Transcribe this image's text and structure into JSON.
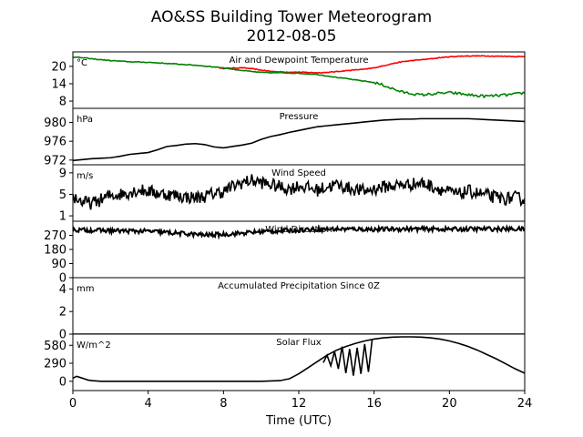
{
  "figure": {
    "title_line1": "AO&SS Building Tower Meteorogram",
    "title_line2": "2012-08-05",
    "xlabel": "Time (UTC)",
    "xticks": [
      0,
      4,
      8,
      12,
      16,
      20,
      24
    ],
    "xlim": [
      0,
      24
    ]
  },
  "chart_data": [
    {
      "type": "line",
      "title": "Air and Dewpoint Temperature",
      "unit": "°C",
      "ylim": [
        5.5,
        25
      ],
      "yticks": [
        8,
        14,
        20
      ],
      "series": [
        {
          "color": "#ff0000",
          "x": [
            7.8,
            8.5,
            9,
            9.5,
            10,
            10.5,
            11,
            11.5,
            12,
            12.5,
            13,
            13.5,
            14,
            14.5,
            15,
            15.5,
            16,
            16.5,
            17,
            17.5,
            18,
            18.5,
            19,
            19.5,
            20,
            20.5,
            21,
            21.5,
            22,
            22.5,
            23,
            23.5,
            24
          ],
          "y": [
            19.3,
            19.4,
            19.5,
            19.2,
            18.7,
            18.3,
            18.1,
            18.0,
            18.0,
            17.9,
            17.8,
            17.9,
            18.2,
            18.5,
            18.8,
            19.0,
            19.5,
            20.2,
            21.0,
            21.6,
            22.0,
            22.3,
            22.6,
            23.0,
            23.3,
            23.5,
            23.6,
            23.6,
            23.6,
            23.5,
            23.5,
            23.4,
            23.4
          ]
        },
        {
          "color": "#008000",
          "x": [
            0,
            0.5,
            1,
            1.5,
            2,
            2.5,
            3,
            3.5,
            4,
            4.5,
            5,
            5.5,
            6,
            6.5,
            7,
            7.5,
            8,
            8.5,
            9,
            9.5,
            10,
            10.5,
            11,
            11.5,
            12,
            12.5,
            13,
            13.5,
            14,
            14.5,
            15,
            15.5,
            16,
            16.5,
            17,
            17.5,
            18,
            18.5,
            19,
            19.5,
            20,
            20.5,
            21,
            21.5,
            22,
            22.5,
            23,
            23.5,
            24
          ],
          "y": [
            23.2,
            23.0,
            22.6,
            22.3,
            22.0,
            21.8,
            21.6,
            21.5,
            21.4,
            21.2,
            21.0,
            20.8,
            20.6,
            20.4,
            20.1,
            19.8,
            19.5,
            19.0,
            18.6,
            18.2,
            17.9,
            17.8,
            17.8,
            17.7,
            17.6,
            17.4,
            17.2,
            16.7,
            16.2,
            15.8,
            15.3,
            14.9,
            14.4,
            13.5,
            12.2,
            11.1,
            10.6,
            10.1,
            10.4,
            10.7,
            10.9,
            10.6,
            10.2,
            9.8,
            9.7,
            9.9,
            10.1,
            10.4,
            10.9
          ]
        }
      ]
    },
    {
      "type": "line",
      "title": "Pressure",
      "unit": "hPa",
      "ylim": [
        971.0,
        983.0
      ],
      "yticks": [
        972,
        976,
        980
      ],
      "series": [
        {
          "color": "#000000",
          "x": [
            0,
            0.5,
            1,
            1.5,
            2,
            2.5,
            3,
            3.5,
            4,
            4.5,
            5,
            5.5,
            6,
            6.5,
            7,
            7.5,
            8,
            8.5,
            9,
            9.5,
            10,
            10.5,
            11,
            11.5,
            12,
            12.5,
            13,
            13.5,
            14,
            14.5,
            15,
            15.5,
            16,
            16.5,
            17,
            17.5,
            18,
            18.5,
            19,
            19.5,
            20,
            20.5,
            21,
            21.5,
            22,
            22.5,
            23,
            23.5,
            24
          ],
          "y": [
            971.9,
            972.1,
            972.3,
            972.4,
            972.5,
            972.8,
            973.2,
            973.4,
            973.6,
            974.2,
            974.9,
            975.1,
            975.4,
            975.5,
            975.3,
            974.8,
            974.6,
            974.9,
            975.2,
            975.6,
            976.4,
            977.0,
            977.4,
            977.9,
            978.3,
            978.7,
            979.1,
            979.3,
            979.5,
            979.7,
            979.9,
            980.1,
            980.3,
            980.5,
            980.6,
            980.7,
            980.7,
            980.8,
            980.8,
            980.8,
            980.8,
            980.8,
            980.8,
            980.7,
            980.6,
            980.5,
            980.4,
            980.3,
            980.2
          ]
        }
      ]
    },
    {
      "type": "line",
      "title": "Wind Speed",
      "unit": "m/s",
      "ylim": [
        0,
        10.5
      ],
      "yticks": [
        1,
        5,
        9
      ],
      "series": [
        {
          "color": "#000000",
          "x": [
            0,
            0.5,
            1,
            1.5,
            2,
            2.5,
            3,
            3.5,
            4,
            4.5,
            5,
            5.5,
            6,
            6.5,
            7,
            7.5,
            8,
            8.5,
            9,
            9.5,
            10,
            10.5,
            11,
            11.5,
            12,
            12.5,
            13,
            13.5,
            14,
            14.5,
            15,
            15.5,
            16,
            16.5,
            17,
            17.5,
            18,
            18.5,
            19,
            19.5,
            20,
            20.5,
            21,
            21.5,
            22,
            22.5,
            23,
            23.5,
            24
          ],
          "y": [
            4.6,
            3.6,
            3.3,
            4.0,
            4.8,
            5.0,
            5.4,
            5.8,
            5.6,
            5.2,
            5.0,
            4.8,
            4.5,
            4.4,
            4.6,
            5.2,
            5.5,
            6.5,
            7.2,
            7.6,
            7.2,
            6.8,
            6.4,
            6.0,
            6.6,
            6.2,
            5.8,
            6.4,
            6.8,
            6.3,
            5.9,
            5.6,
            6.0,
            6.4,
            6.6,
            6.8,
            6.9,
            7.1,
            6.6,
            6.0,
            5.4,
            5.0,
            5.6,
            5.2,
            4.8,
            4.4,
            4.2,
            4.4,
            4.0
          ],
          "noise": 1.2
        }
      ]
    },
    {
      "type": "line",
      "title": "Wind Direction",
      "unit": "",
      "ylim": [
        0,
        360
      ],
      "yticks": [
        0,
        90,
        180,
        270
      ],
      "series": [
        {
          "color": "#000000",
          "x": [
            0,
            1,
            2,
            3,
            4,
            5,
            6,
            7,
            8,
            9,
            10,
            11,
            12,
            13,
            14,
            15,
            16,
            17,
            18,
            19,
            20,
            21,
            22,
            23,
            24
          ],
          "y": [
            305,
            303,
            300,
            298,
            296,
            288,
            280,
            272,
            276,
            284,
            294,
            298,
            304,
            308,
            310,
            310,
            308,
            310,
            311,
            310,
            309,
            310,
            311,
            310,
            310
          ],
          "noise": 14
        }
      ]
    },
    {
      "type": "line",
      "title": "Accumulated Precipitation Since 0Z",
      "unit": "mm",
      "ylim": [
        0,
        5
      ],
      "yticks": [
        0,
        2,
        4
      ],
      "series": [
        {
          "color": "#000000",
          "x": [
            0,
            24
          ],
          "y": [
            0,
            0
          ]
        }
      ]
    },
    {
      "type": "line",
      "title": "Solar Flux",
      "unit": "W/m^2",
      "ylim": [
        -150,
        760
      ],
      "yticks": [
        0,
        290,
        580
      ],
      "series": [
        {
          "color": "#000000",
          "x": [
            0,
            0.2,
            0.4,
            0.6,
            0.8,
            1,
            1.5,
            2,
            4,
            6,
            8,
            10,
            11,
            11.5,
            12,
            12.5,
            13,
            13.5,
            14,
            14.5,
            15,
            15.5,
            16,
            16.5,
            17,
            17.5,
            18,
            18.5,
            19,
            19.5,
            20,
            20.5,
            21,
            21.5,
            22,
            22.5,
            23,
            23.5,
            24
          ],
          "y": [
            50,
            80,
            60,
            40,
            20,
            10,
            0,
            0,
            0,
            0,
            0,
            0,
            10,
            40,
            120,
            220,
            320,
            420,
            500,
            560,
            610,
            650,
            680,
            700,
            712,
            716,
            716,
            712,
            700,
            680,
            650,
            610,
            560,
            500,
            430,
            360,
            280,
            200,
            130
          ]
        },
        {
          "color": "#000000",
          "x": [
            13.3,
            13.5,
            13.7,
            13.9,
            14.1,
            14.3,
            14.5,
            14.7,
            14.9,
            15.1,
            15.3,
            15.5,
            15.7,
            15.9
          ],
          "y": [
            300,
            420,
            250,
            480,
            200,
            560,
            130,
            520,
            90,
            540,
            120,
            600,
            150,
            680
          ],
          "clouds": true
        }
      ]
    }
  ]
}
